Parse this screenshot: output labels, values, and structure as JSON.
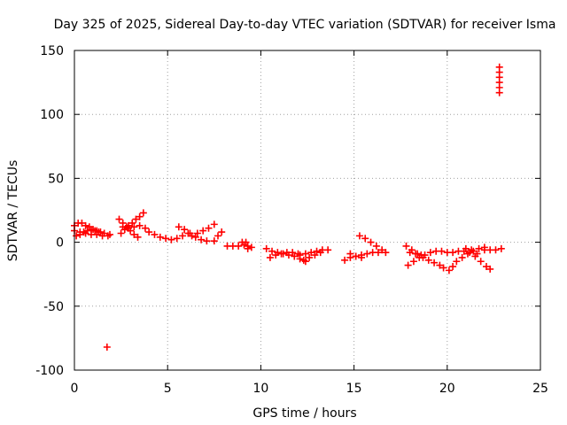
{
  "chart_data": {
    "type": "scatter",
    "title": "Day 325 of 2025, Sidereal Day-to-day VTEC variation (SDTVAR) for receiver Isma",
    "xlabel": "GPS time / hours",
    "ylabel": "SDTVAR / TECUs",
    "xlim": [
      0,
      25
    ],
    "ylim": [
      -100,
      150
    ],
    "xticks": [
      "0",
      "5",
      "10",
      "15",
      "20",
      "25"
    ],
    "yticks": [
      "-100",
      "-50",
      "0",
      "50",
      "100",
      "150"
    ],
    "grid": true,
    "marker": "+",
    "color": "#ff0000",
    "series": [
      {
        "name": "SDTVAR",
        "points": [
          [
            0.0,
            13
          ],
          [
            0.2,
            15
          ],
          [
            0.4,
            15
          ],
          [
            0.6,
            13
          ],
          [
            0.8,
            12
          ],
          [
            1.0,
            10
          ],
          [
            1.2,
            9
          ],
          [
            1.4,
            8
          ],
          [
            1.6,
            7
          ],
          [
            1.9,
            6
          ],
          [
            0.0,
            9
          ],
          [
            0.3,
            8
          ],
          [
            0.6,
            7
          ],
          [
            0.9,
            6
          ],
          [
            1.2,
            6
          ],
          [
            1.5,
            5
          ],
          [
            1.8,
            5
          ],
          [
            0.1,
            5
          ],
          [
            0.3,
            6
          ],
          [
            0.5,
            8
          ],
          [
            0.7,
            9
          ],
          [
            0.9,
            10
          ],
          [
            1.1,
            9
          ],
          [
            1.3,
            8
          ],
          [
            1.75,
            -82
          ],
          [
            2.4,
            18
          ],
          [
            2.6,
            15
          ],
          [
            2.8,
            12
          ],
          [
            3.0,
            9
          ],
          [
            3.2,
            6
          ],
          [
            3.4,
            4
          ],
          [
            2.5,
            7
          ],
          [
            2.7,
            10
          ],
          [
            2.9,
            13
          ],
          [
            3.1,
            15
          ],
          [
            3.3,
            18
          ],
          [
            3.5,
            20
          ],
          [
            3.7,
            23
          ],
          [
            2.6,
            12
          ],
          [
            2.9,
            11
          ],
          [
            3.2,
            12
          ],
          [
            3.5,
            13
          ],
          [
            3.8,
            11
          ],
          [
            4.0,
            8
          ],
          [
            4.3,
            6
          ],
          [
            4.6,
            4
          ],
          [
            4.9,
            3
          ],
          [
            5.2,
            2
          ],
          [
            5.5,
            3
          ],
          [
            5.8,
            5
          ],
          [
            6.1,
            7
          ],
          [
            5.6,
            12
          ],
          [
            5.9,
            10
          ],
          [
            6.2,
            7
          ],
          [
            6.5,
            4
          ],
          [
            6.8,
            2
          ],
          [
            7.1,
            1
          ],
          [
            6.3,
            5
          ],
          [
            6.6,
            7
          ],
          [
            6.9,
            9
          ],
          [
            7.2,
            11
          ],
          [
            7.5,
            14
          ],
          [
            7.5,
            1
          ],
          [
            7.7,
            5
          ],
          [
            7.9,
            8
          ],
          [
            8.2,
            -3
          ],
          [
            8.5,
            -3
          ],
          [
            8.8,
            -3
          ],
          [
            9.1,
            -2
          ],
          [
            9.3,
            -3
          ],
          [
            9.5,
            -4
          ],
          [
            9.0,
            0
          ],
          [
            9.2,
            0
          ],
          [
            9.3,
            -5
          ],
          [
            10.3,
            -5
          ],
          [
            10.6,
            -7
          ],
          [
            10.9,
            -8
          ],
          [
            11.2,
            -9
          ],
          [
            11.5,
            -10
          ],
          [
            11.8,
            -11
          ],
          [
            12.1,
            -13
          ],
          [
            12.4,
            -15
          ],
          [
            10.5,
            -12
          ],
          [
            10.8,
            -10
          ],
          [
            11.1,
            -9
          ],
          [
            11.4,
            -8
          ],
          [
            11.7,
            -8
          ],
          [
            12.0,
            -9
          ],
          [
            12.1,
            -10
          ],
          [
            12.4,
            -9
          ],
          [
            12.7,
            -8
          ],
          [
            13.0,
            -7
          ],
          [
            13.3,
            -6
          ],
          [
            13.6,
            -6
          ],
          [
            12.3,
            -14
          ],
          [
            12.6,
            -12
          ],
          [
            12.9,
            -10
          ],
          [
            13.2,
            -8
          ],
          [
            14.5,
            -14
          ],
          [
            14.8,
            -12
          ],
          [
            15.1,
            -11
          ],
          [
            15.4,
            -10
          ],
          [
            15.7,
            -9
          ],
          [
            16.0,
            -8
          ],
          [
            16.3,
            -8
          ],
          [
            14.8,
            -9
          ],
          [
            15.1,
            -11
          ],
          [
            15.4,
            -12
          ],
          [
            15.3,
            5
          ],
          [
            15.6,
            3
          ],
          [
            15.9,
            0
          ],
          [
            16.2,
            -3
          ],
          [
            16.5,
            -6
          ],
          [
            16.7,
            -8
          ],
          [
            17.8,
            -3
          ],
          [
            18.1,
            -6
          ],
          [
            18.4,
            -9
          ],
          [
            18.7,
            -12
          ],
          [
            19.0,
            -14
          ],
          [
            19.3,
            -16
          ],
          [
            19.6,
            -18
          ],
          [
            19.8,
            -20
          ],
          [
            17.9,
            -18
          ],
          [
            18.2,
            -15
          ],
          [
            18.5,
            -12
          ],
          [
            18.8,
            -10
          ],
          [
            19.1,
            -8
          ],
          [
            19.4,
            -7
          ],
          [
            19.7,
            -7
          ],
          [
            20.0,
            -8
          ],
          [
            18.0,
            -8
          ],
          [
            18.3,
            -9
          ],
          [
            18.6,
            -10
          ],
          [
            20.1,
            -22
          ],
          [
            20.3,
            -19
          ],
          [
            20.5,
            -15
          ],
          [
            20.8,
            -12
          ],
          [
            21.1,
            -9
          ],
          [
            21.4,
            -7
          ],
          [
            21.7,
            -5
          ],
          [
            22.0,
            -4
          ],
          [
            20.3,
            -8
          ],
          [
            20.6,
            -7
          ],
          [
            20.9,
            -7
          ],
          [
            21.2,
            -8
          ],
          [
            21.5,
            -11
          ],
          [
            21.8,
            -15
          ],
          [
            22.1,
            -19
          ],
          [
            22.3,
            -21
          ],
          [
            21.0,
            -5
          ],
          [
            21.3,
            -6
          ],
          [
            21.6,
            -9
          ],
          [
            22.0,
            -6
          ],
          [
            22.3,
            -6
          ],
          [
            22.6,
            -6
          ],
          [
            22.9,
            -5
          ],
          [
            22.8,
            117
          ],
          [
            22.8,
            121
          ],
          [
            22.8,
            125
          ],
          [
            22.8,
            129
          ],
          [
            22.8,
            133
          ],
          [
            22.8,
            137
          ]
        ]
      }
    ]
  }
}
